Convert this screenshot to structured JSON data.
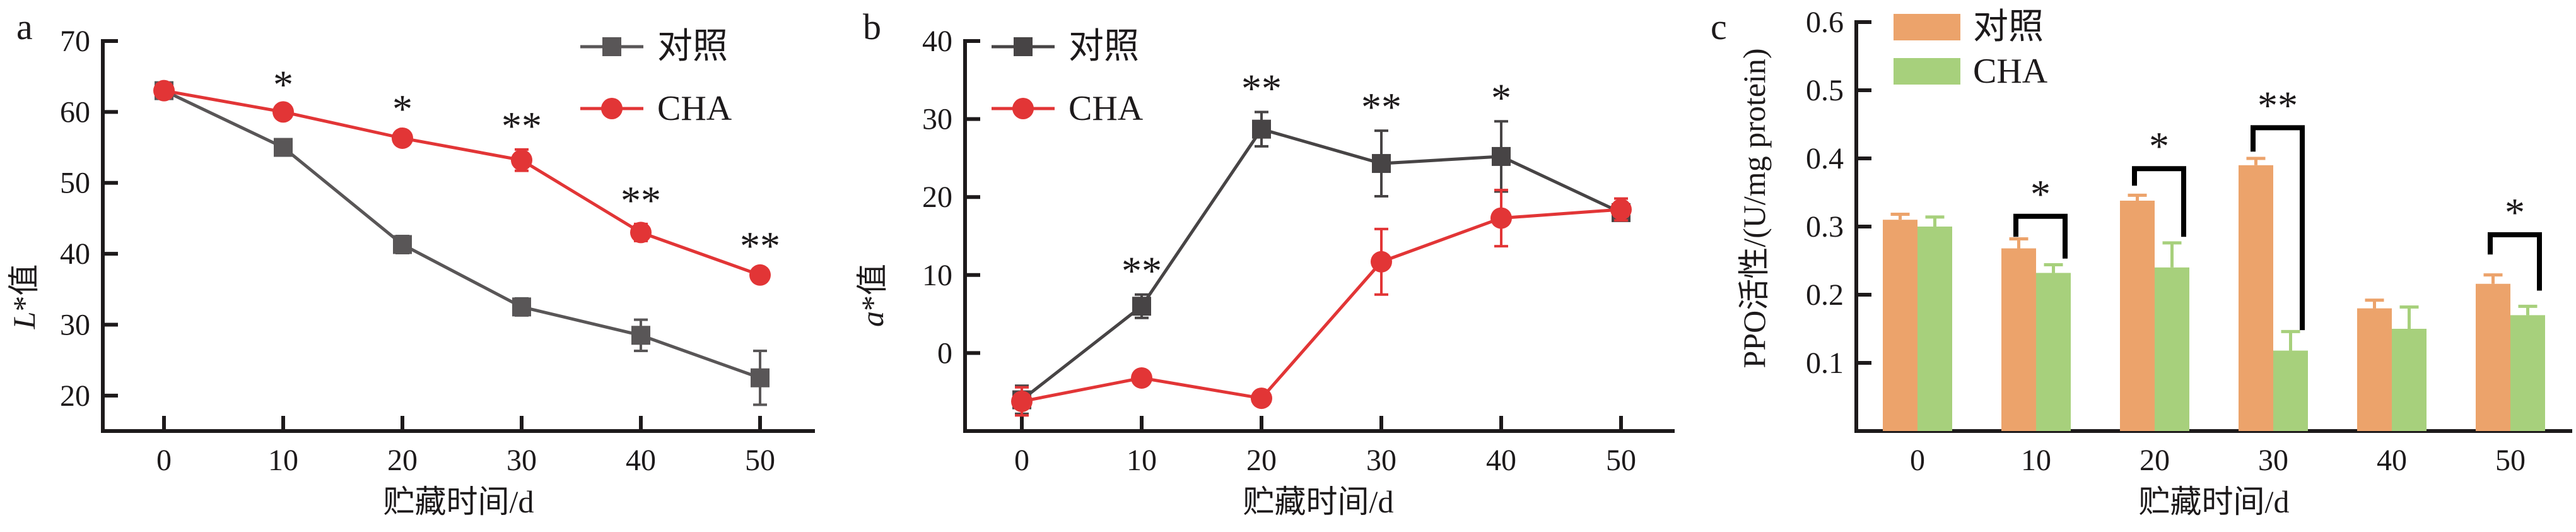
{
  "figure_caption_letters": [
    "a",
    "b",
    "c"
  ],
  "legend_labels": [
    "对照",
    "CHA"
  ],
  "colors": {
    "control_line": "#595657",
    "control_line_dark": "#474445",
    "cha_red": "#e23536",
    "control_bar_orange": "#eca36b",
    "cha_bar_green": "#a7d07c",
    "text": "#1d1a1b"
  },
  "chart_data": [
    {
      "panel_label": "a",
      "type": "line",
      "x": [
        0,
        10,
        20,
        30,
        40,
        50
      ],
      "xticks": [
        "0",
        "10",
        "20",
        "30",
        "40",
        "50"
      ],
      "xlabel": "贮藏时间/d",
      "ylabel": "L*值",
      "ylim": [
        15,
        70
      ],
      "yticks": [
        20,
        30,
        40,
        50,
        60,
        70
      ],
      "grid": false,
      "legend_position": "top-right-inside",
      "series": [
        {
          "name": "对照",
          "marker": "square",
          "color": "#595657",
          "values": [
            63,
            55,
            41.3,
            32.5,
            28.5,
            22.5
          ],
          "err": [
            0.6,
            0.8,
            1.2,
            1.2,
            2.2,
            3.8
          ]
        },
        {
          "name": "CHA",
          "marker": "circle",
          "color": "#e23536",
          "values": [
            63,
            60,
            56.3,
            53.2,
            43,
            37
          ],
          "err": [
            0.6,
            0.5,
            0.8,
            1.5,
            1.2,
            0.8
          ]
        }
      ],
      "significance": [
        {
          "x": 10,
          "series": "CHA",
          "label": "*"
        },
        {
          "x": 20,
          "series": "CHA",
          "label": "*"
        },
        {
          "x": 30,
          "series": "CHA",
          "label": "**"
        },
        {
          "x": 40,
          "series": "CHA",
          "label": "**"
        },
        {
          "x": 50,
          "series": "CHA",
          "label": "**"
        }
      ]
    },
    {
      "panel_label": "b",
      "type": "line",
      "x": [
        0,
        10,
        20,
        30,
        40,
        50
      ],
      "xticks": [
        "0",
        "10",
        "20",
        "30",
        "40",
        "50"
      ],
      "xlabel": "贮藏时间/d",
      "ylabel": "a*值",
      "ylim": [
        -10,
        40
      ],
      "yticks": [
        0,
        10,
        20,
        30,
        40
      ],
      "grid": false,
      "legend_position": "top-left-inside",
      "series": [
        {
          "name": "对照",
          "marker": "square",
          "color": "#474445",
          "values": [
            -6,
            6,
            28.7,
            24.3,
            25.2,
            18
          ],
          "err": [
            1.8,
            1.5,
            2.2,
            4.2,
            4.5,
            1.0
          ]
        },
        {
          "name": "CHA",
          "marker": "circle",
          "color": "#e23536",
          "values": [
            -6.2,
            -3.2,
            -5.8,
            11.7,
            17.3,
            18.4
          ],
          "err": [
            1.8,
            0.5,
            0.5,
            4.2,
            3.6,
            1.4
          ]
        }
      ],
      "significance": [
        {
          "x": 10,
          "series": "对照",
          "label": "**"
        },
        {
          "x": 20,
          "series": "对照",
          "label": "**"
        },
        {
          "x": 30,
          "series": "对照",
          "label": "**"
        },
        {
          "x": 40,
          "series": "对照",
          "label": "*"
        }
      ]
    },
    {
      "panel_label": "c",
      "type": "bar",
      "categories": [
        "0",
        "10",
        "20",
        "30",
        "40",
        "50"
      ],
      "xlabel": "贮藏时间/d",
      "ylabel": "PPO活性/(U/mg protein)",
      "ylim": [
        0,
        0.6
      ],
      "yticks": [
        0.1,
        0.2,
        0.3,
        0.4,
        0.5,
        0.6
      ],
      "grid": false,
      "legend_position": "top-left-inside",
      "series": [
        {
          "name": "对照",
          "color": "#eca36b",
          "values": [
            0.31,
            0.268,
            0.338,
            0.39,
            0.18,
            0.216
          ],
          "err": [
            0.008,
            0.014,
            0.008,
            0.01,
            0.012,
            0.013
          ]
        },
        {
          "name": "CHA",
          "color": "#a7d07c",
          "values": [
            0.3,
            0.232,
            0.24,
            0.118,
            0.15,
            0.17
          ],
          "err": [
            0.014,
            0.012,
            0.036,
            0.028,
            0.032,
            0.013
          ]
        }
      ],
      "significance_brackets": [
        {
          "category": "10",
          "label": "*",
          "top": 0.315,
          "left_drop_to": 0.285,
          "right_drop_to": 0.253
        },
        {
          "category": "20",
          "label": "*",
          "top": 0.385,
          "left_drop_to": 0.36,
          "right_drop_to": 0.285
        },
        {
          "category": "30",
          "label": "**",
          "top": 0.445,
          "left_drop_to": 0.41,
          "right_drop_to": 0.148
        },
        {
          "category": "50",
          "label": "*",
          "top": 0.288,
          "left_drop_to": 0.259,
          "right_drop_to": 0.206
        }
      ]
    }
  ]
}
